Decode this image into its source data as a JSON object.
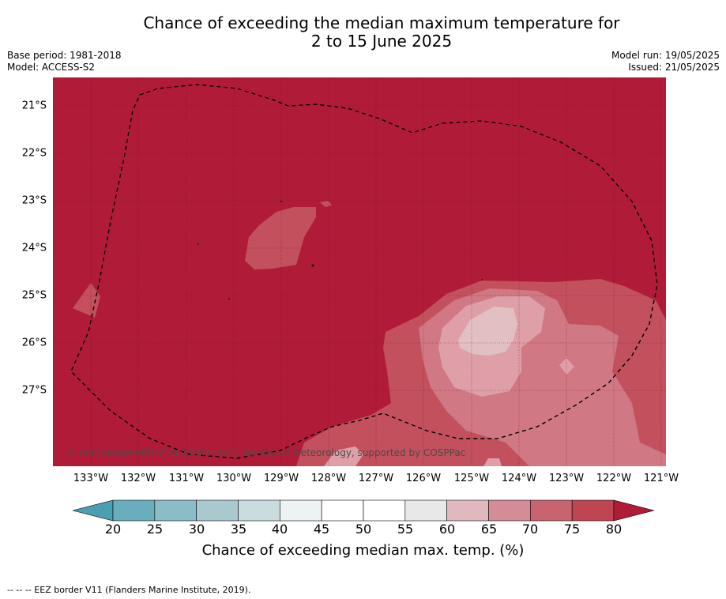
{
  "title_line1": "Chance of exceeding the median maximum temperature for",
  "title_line2": "2 to 15 June 2025",
  "meta": {
    "base_period": "Base period: 1981-2018",
    "model": "Model: ACCESS-S2",
    "model_run": "Model run: 19/05/2025",
    "issued": "Issued: 21/05/2025"
  },
  "latitude_labels": [
    "21°S",
    "22°S",
    "23°S",
    "24°S",
    "25°S",
    "26°S",
    "27°S"
  ],
  "longitude_labels": [
    "133°W",
    "132°W",
    "131°W",
    "130°W",
    "129°W",
    "128°W",
    "127°W",
    "126°W",
    "125°W",
    "124°W",
    "123°W",
    "122°W",
    "121°W"
  ],
  "credit": "© Commonwealth of Australia 2025, Bureau of Meteorology, supported by COSPPac",
  "colorbar": {
    "ticks": [
      "20",
      "25",
      "30",
      "35",
      "40",
      "45",
      "50",
      "55",
      "60",
      "65",
      "70",
      "75",
      "80"
    ],
    "colors": [
      "#4a9fb0",
      "#6aaebe",
      "#8bbcc7",
      "#aac9ce",
      "#cbdcdf",
      "#edf2f3",
      "#ffffff",
      "#ffffff",
      "#e8e8e8",
      "#e0b9bf",
      "#d48c96",
      "#c86370",
      "#bf4553",
      "#b01c37"
    ],
    "label": "Chance of exceeding median max. temp. (%)"
  },
  "footer": "--  --  -- EEZ border V11 (Flanders Marine Institute, 2019).",
  "map_colors": {
    "level_80": "#b01c37",
    "level_75": "#c3505d",
    "level_70": "#d07883",
    "level_65": "#de9fa8",
    "level_60": "#e2bfc3"
  }
}
